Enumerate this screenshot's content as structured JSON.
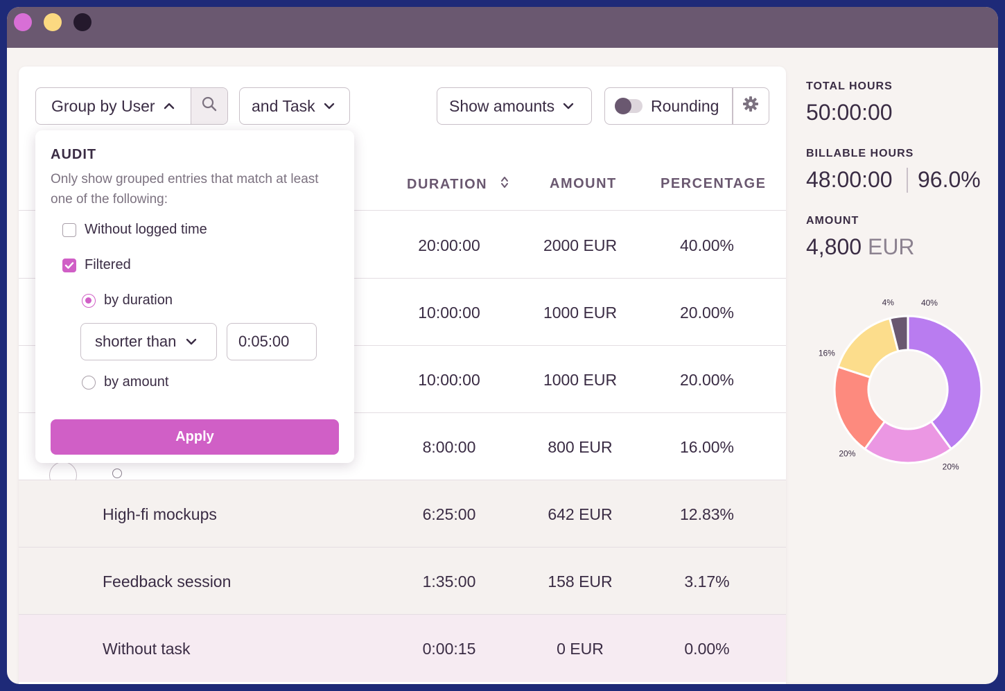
{
  "toolbar": {
    "group_label": "Group by User",
    "task_label": "and Task",
    "amounts_label": "Show amounts",
    "rounding_label": "Rounding",
    "rounding_enabled": false
  },
  "table": {
    "headers": {
      "duration": "DURATION",
      "amount": "AMOUNT",
      "percentage": "PERCENTAGE"
    },
    "rows": [
      {
        "name": "",
        "duration": "20:00:00",
        "amount": "2000 EUR",
        "percentage": "40.00%"
      },
      {
        "name": "",
        "duration": "10:00:00",
        "amount": "1000 EUR",
        "percentage": "20.00%"
      },
      {
        "name": "",
        "duration": "10:00:00",
        "amount": "1000 EUR",
        "percentage": "20.00%"
      },
      {
        "name": "",
        "duration": "8:00:00",
        "amount": "800 EUR",
        "percentage": "16.00%"
      },
      {
        "name": "High-fi mockups",
        "duration": "6:25:00",
        "amount": "642 EUR",
        "percentage": "12.83%"
      },
      {
        "name": "Feedback session",
        "duration": "1:35:00",
        "amount": "158 EUR",
        "percentage": "3.17%"
      },
      {
        "name": "Without task",
        "duration": "0:00:15",
        "amount": "0 EUR",
        "percentage": "0.00%"
      }
    ]
  },
  "audit": {
    "title": "AUDIT",
    "description": "Only show grouped entries that match at least one of the following:",
    "without_logged_time": "Without logged time",
    "without_logged_time_checked": false,
    "filtered": "Filtered",
    "filtered_checked": true,
    "by_duration": "by duration",
    "by_duration_selected": true,
    "comparator": "shorter than",
    "duration_value": "0:05:00",
    "by_amount": "by amount",
    "by_amount_selected": false,
    "apply_label": "Apply"
  },
  "summary": {
    "total_hours_label": "TOTAL HOURS",
    "total_hours": "50:00:00",
    "billable_hours_label": "BILLABLE HOURS",
    "billable_hours": "48:00:00",
    "billable_percent": "96.0%",
    "amount_label": "AMOUNT",
    "amount_value": "4,800",
    "amount_unit": "EUR"
  },
  "chart_data": {
    "type": "pie",
    "title": "",
    "slices": [
      {
        "label": "40%",
        "value": 40,
        "color": "#b97cf0"
      },
      {
        "label": "20%",
        "value": 20,
        "color": "#eb97e3"
      },
      {
        "label": "20%",
        "value": 20,
        "color": "#fd8a7e"
      },
      {
        "label": "16%",
        "value": 16,
        "color": "#fcdd8c"
      },
      {
        "label": "4%",
        "value": 4,
        "color": "#6a5870"
      }
    ]
  },
  "colors": {
    "accent": "#d05fc6",
    "titlebar": "#6a5870",
    "border": "#1e2a78"
  }
}
